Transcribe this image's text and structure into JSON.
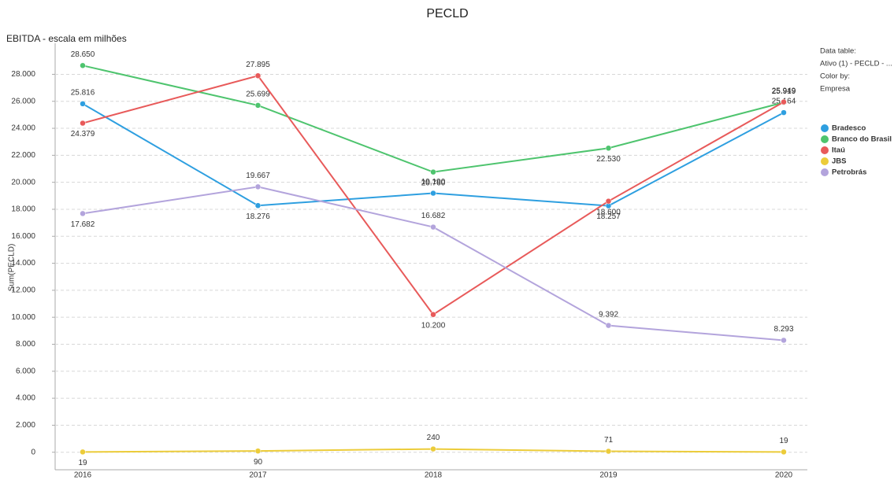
{
  "chart_data": {
    "type": "line",
    "title": "PECLD",
    "subtitle": "EBITDA - escala em milhões",
    "y_label": "Sum(PECLD)",
    "categories": [
      "2016",
      "2017",
      "2018",
      "2019",
      "2020"
    ],
    "series": [
      {
        "name": "Bradesco",
        "color": "#2e9fe0",
        "values": [
          25816,
          18276,
          19190,
          18257,
          25164
        ],
        "value_labels": [
          "25.816",
          "18.276",
          "19.190",
          "18.257",
          "25.164"
        ]
      },
      {
        "name": "Branco do Brasil",
        "color": "#4ec46e",
        "values": [
          28650,
          25699,
          20760,
          22530,
          25919
        ],
        "value_labels": [
          "28.650",
          "25.699",
          "20.760",
          "22.530",
          "25.919"
        ]
      },
      {
        "name": "Itaú",
        "color": "#e85a5a",
        "values": [
          24379,
          27895,
          10200,
          18600,
          25949
        ],
        "value_labels": [
          "24.379",
          "27.895",
          "10.200",
          "18.600",
          "25.949"
        ]
      },
      {
        "name": "JBS",
        "color": "#eccc3a",
        "values": [
          19,
          90,
          240,
          71,
          19
        ],
        "value_labels": [
          "19",
          "90",
          "240",
          "71",
          "19"
        ]
      },
      {
        "name": "Petrobrás",
        "color": "#b3a4dc",
        "values": [
          17682,
          19667,
          16682,
          9392,
          8293
        ],
        "value_labels": [
          "17.682",
          "19.667",
          "16.682",
          "9.392",
          "8.293"
        ]
      }
    ],
    "ylim": [
      -1300,
      30300
    ],
    "yticks": [
      0,
      {
        "value": 2000,
        "label": "2.000"
      },
      {
        "value": 4000,
        "label": "4.000"
      },
      {
        "value": 6000,
        "label": "6.000"
      },
      {
        "value": 8000,
        "label": "8.000"
      },
      {
        "value": 10000,
        "label": "10.000"
      },
      {
        "value": 12000,
        "label": "12.000"
      },
      {
        "value": 14000,
        "label": "14.000"
      },
      {
        "value": 16000,
        "label": "16.000"
      },
      {
        "value": 18000,
        "label": "18.000"
      },
      {
        "value": 20000,
        "label": "20.000"
      },
      {
        "value": 22000,
        "label": "22.000"
      },
      {
        "value": 24000,
        "label": "24.000"
      },
      {
        "value": 26000,
        "label": "26.000"
      },
      {
        "value": 28000,
        "label": "28.000"
      }
    ],
    "grid": true,
    "legend": {
      "position": "right",
      "items": [
        "Data table:",
        "Ativo (1) - PECLD - ...",
        "Color by:",
        "Empresa"
      ]
    }
  }
}
